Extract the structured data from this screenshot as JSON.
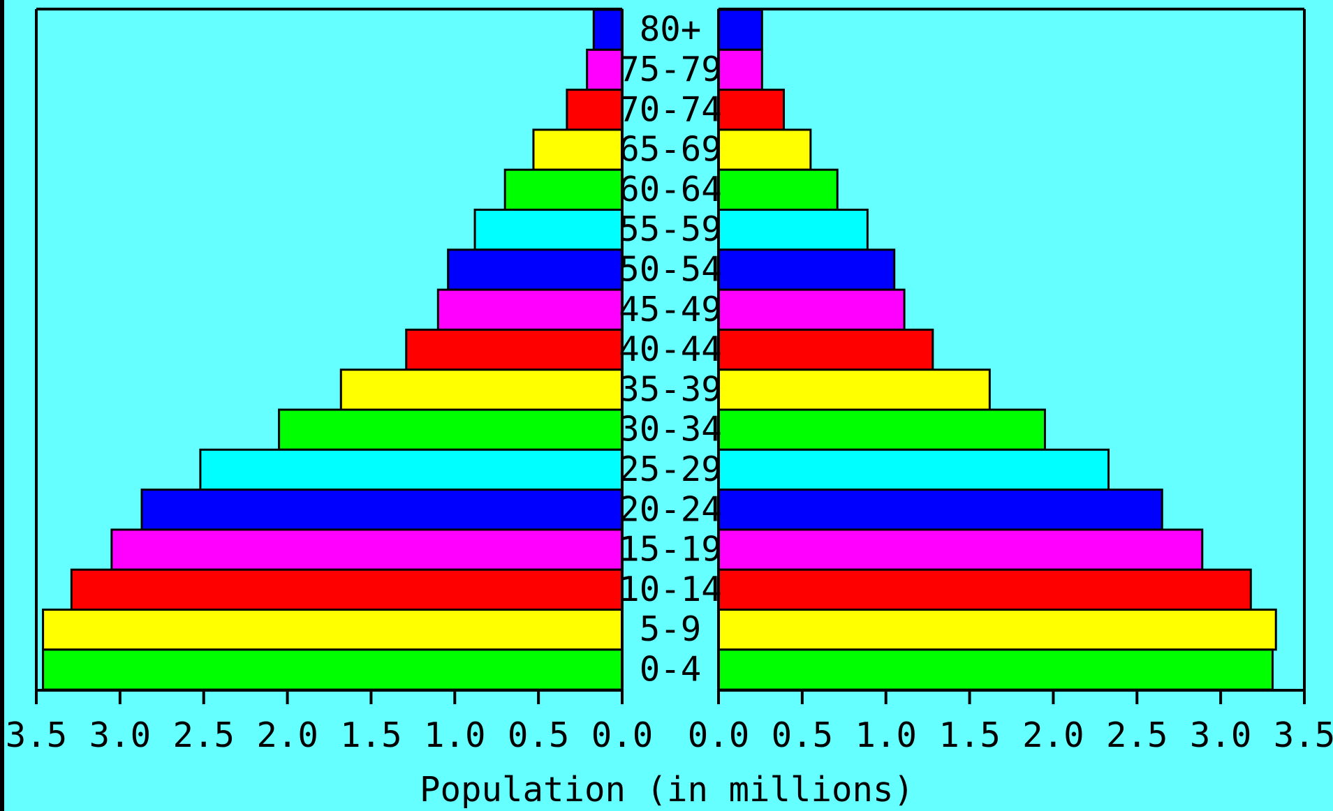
{
  "chart_data": {
    "type": "bar",
    "orientation": "horizontal",
    "layout": "population-pyramid",
    "background_color": "#66FFFF",
    "xlabel": "Population (in millions)",
    "xlim": [
      0,
      3.5
    ],
    "left_ticks": [
      "3.5",
      "3.0",
      "2.5",
      "2.0",
      "1.5",
      "1.0",
      "0.5",
      "0.0"
    ],
    "right_ticks": [
      "0.0",
      "0.5",
      "1.0",
      "1.5",
      "2.0",
      "2.5",
      "3.0",
      "3.5"
    ],
    "tick_values": [
      0,
      0.5,
      1.0,
      1.5,
      2.0,
      2.5,
      3.0,
      3.5
    ],
    "categories": [
      "80+",
      "75-79",
      "70-74",
      "65-69",
      "60-64",
      "55-59",
      "50-54",
      "45-49",
      "40-44",
      "35-39",
      "30-34",
      "25-29",
      "20-24",
      "15-19",
      "10-14",
      "5-9",
      "0-4"
    ],
    "bar_colors": [
      "#0000FF",
      "#FF00FF",
      "#FF0000",
      "#FFFF00",
      "#00FF00",
      "#00FFFF",
      "#0000FF",
      "#FF00FF",
      "#FF0000",
      "#FFFF00",
      "#00FF00",
      "#00FFFF",
      "#0000FF",
      "#FF00FF",
      "#FF0000",
      "#FFFF00",
      "#00FF00"
    ],
    "series": [
      {
        "side": "left",
        "values": [
          0.17,
          0.21,
          0.33,
          0.53,
          0.7,
          0.88,
          1.04,
          1.1,
          1.29,
          1.68,
          2.05,
          2.52,
          2.87,
          3.05,
          3.29,
          3.46,
          3.46
        ]
      },
      {
        "side": "right",
        "values": [
          0.26,
          0.26,
          0.39,
          0.55,
          0.71,
          0.89,
          1.05,
          1.11,
          1.28,
          1.62,
          1.95,
          2.33,
          2.65,
          2.89,
          3.18,
          3.33,
          3.31
        ]
      }
    ],
    "grid": false,
    "legend": "none"
  }
}
